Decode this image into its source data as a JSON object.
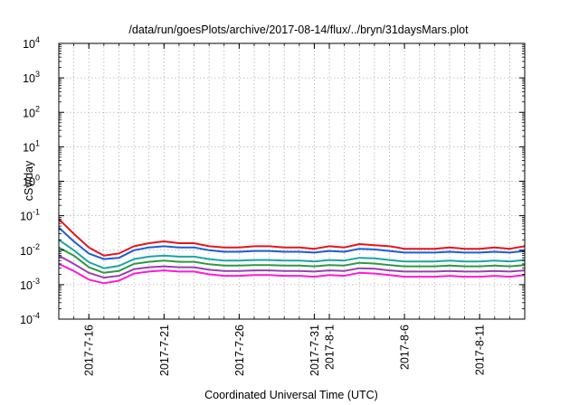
{
  "chart_data": {
    "type": "line",
    "title": "/data/run/goesPlots/archive/2017-08-14/flux/../bryn/31daysMars.plot",
    "xlabel": "Coordinated Universal Time (UTC)",
    "ylabel": "cSv/day",
    "yscale": "log",
    "ylim": [
      0.0001,
      10000
    ],
    "y_ticks": [
      {
        "base": "10",
        "exp": "4"
      },
      {
        "base": "10",
        "exp": "3"
      },
      {
        "base": "10",
        "exp": "2"
      },
      {
        "base": "10",
        "exp": "1"
      },
      {
        "base": "10",
        "exp": "0"
      },
      {
        "base": "10",
        "exp": "-1"
      },
      {
        "base": "10",
        "exp": "-2"
      },
      {
        "base": "10",
        "exp": "-3"
      },
      {
        "base": "10",
        "exp": "-4"
      }
    ],
    "xlim": [
      "2017-07-14",
      "2017-08-14"
    ],
    "x_ticks": [
      {
        "date": "2017-07-16",
        "label": "2017-7-16"
      },
      {
        "date": "2017-07-21",
        "label": "2017-7-21"
      },
      {
        "date": "2017-07-26",
        "label": "2017-7-26"
      },
      {
        "date": "2017-07-31",
        "label": "2017-7-31"
      },
      {
        "date": "2017-08-01",
        "label": "2017-8-1"
      },
      {
        "date": "2017-08-06",
        "label": "2017-8-6"
      },
      {
        "date": "2017-08-11",
        "label": "2017-8-11"
      }
    ],
    "grid": true,
    "x_dates": [
      "2017-07-14",
      "2017-07-15",
      "2017-07-16",
      "2017-07-17",
      "2017-07-18",
      "2017-07-19",
      "2017-07-20",
      "2017-07-21",
      "2017-07-22",
      "2017-07-23",
      "2017-07-24",
      "2017-07-25",
      "2017-07-26",
      "2017-07-27",
      "2017-07-28",
      "2017-07-29",
      "2017-07-30",
      "2017-07-31",
      "2017-08-01",
      "2017-08-02",
      "2017-08-03",
      "2017-08-04",
      "2017-08-05",
      "2017-08-06",
      "2017-08-07",
      "2017-08-08",
      "2017-08-09",
      "2017-08-10",
      "2017-08-11",
      "2017-08-12",
      "2017-08-13",
      "2017-08-14"
    ],
    "series": [
      {
        "color": "#e8141c",
        "values": [
          0.08,
          0.03,
          0.012,
          0.007,
          0.008,
          0.013,
          0.016,
          0.018,
          0.016,
          0.016,
          0.013,
          0.012,
          0.012,
          0.013,
          0.013,
          0.012,
          0.012,
          0.011,
          0.013,
          0.012,
          0.015,
          0.014,
          0.013,
          0.011,
          0.011,
          0.011,
          0.012,
          0.011,
          0.011,
          0.012,
          0.011,
          0.013
        ]
      },
      {
        "color": "#1a5fd6",
        "values": [
          0.045,
          0.018,
          0.008,
          0.0055,
          0.006,
          0.01,
          0.012,
          0.013,
          0.012,
          0.012,
          0.01,
          0.009,
          0.009,
          0.0095,
          0.0095,
          0.009,
          0.009,
          0.0085,
          0.0095,
          0.009,
          0.011,
          0.0105,
          0.0095,
          0.0085,
          0.0085,
          0.0085,
          0.009,
          0.0085,
          0.0085,
          0.009,
          0.0085,
          0.0095
        ]
      },
      {
        "color": "#1fa3a3",
        "values": [
          0.02,
          0.01,
          0.0045,
          0.003,
          0.0035,
          0.0055,
          0.0065,
          0.007,
          0.0065,
          0.0065,
          0.0055,
          0.005,
          0.005,
          0.0052,
          0.0052,
          0.005,
          0.005,
          0.0047,
          0.0052,
          0.005,
          0.006,
          0.0058,
          0.0052,
          0.0047,
          0.0047,
          0.0047,
          0.005,
          0.0047,
          0.0047,
          0.005,
          0.0047,
          0.0052
        ]
      },
      {
        "color": "#2d9a3c",
        "values": [
          0.012,
          0.007,
          0.0032,
          0.0022,
          0.0025,
          0.004,
          0.0046,
          0.005,
          0.0046,
          0.0046,
          0.0039,
          0.0036,
          0.0036,
          0.0037,
          0.0037,
          0.0036,
          0.0036,
          0.0034,
          0.0037,
          0.0036,
          0.0043,
          0.0041,
          0.0037,
          0.0034,
          0.0034,
          0.0034,
          0.0036,
          0.0034,
          0.0034,
          0.0036,
          0.0034,
          0.0037
        ]
      },
      {
        "color": "#9a3fb0",
        "values": [
          0.007,
          0.004,
          0.0022,
          0.0016,
          0.0018,
          0.0028,
          0.0032,
          0.0034,
          0.0032,
          0.0032,
          0.0027,
          0.0025,
          0.0025,
          0.0026,
          0.0026,
          0.0025,
          0.0025,
          0.0024,
          0.0026,
          0.0025,
          0.003,
          0.0029,
          0.0026,
          0.0024,
          0.0024,
          0.0024,
          0.0025,
          0.0024,
          0.0024,
          0.0025,
          0.0024,
          0.0026
        ]
      },
      {
        "color": "#ff18d8",
        "values": [
          0.004,
          0.0025,
          0.0014,
          0.0011,
          0.0013,
          0.0021,
          0.0024,
          0.0026,
          0.0024,
          0.0024,
          0.002,
          0.0018,
          0.0018,
          0.0019,
          0.0019,
          0.0018,
          0.0018,
          0.0017,
          0.0019,
          0.0018,
          0.0022,
          0.0021,
          0.0019,
          0.0017,
          0.0017,
          0.0017,
          0.0018,
          0.0017,
          0.0017,
          0.0018,
          0.0017,
          0.0019
        ]
      }
    ]
  }
}
